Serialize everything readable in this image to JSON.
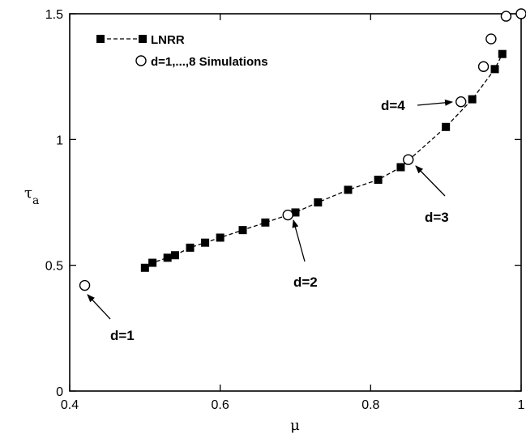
{
  "chart_data": {
    "type": "scatter",
    "xlabel": "μ",
    "ylabel": "τ",
    "ylabel_sub": "a",
    "xlim": [
      0.4,
      1.0
    ],
    "ylim": [
      0,
      1.5
    ],
    "x_ticks": [
      0.4,
      0.6,
      0.8,
      1.0
    ],
    "x_tick_labels": [
      "0.4",
      "0.6",
      "0.8",
      "1"
    ],
    "y_ticks": [
      0,
      0.5,
      1.0,
      1.5
    ],
    "y_tick_labels": [
      "0",
      "0.5",
      "1",
      "1.5"
    ],
    "grid": false,
    "legend_position": "top-left",
    "series": [
      {
        "name": "LNRR",
        "marker": "filled-square",
        "line": "dashed",
        "x": [
          0.5,
          0.51,
          0.53,
          0.54,
          0.56,
          0.58,
          0.6,
          0.63,
          0.66,
          0.7,
          0.73,
          0.77,
          0.81,
          0.84,
          0.9,
          0.935,
          0.965,
          0.975
        ],
        "y": [
          0.49,
          0.51,
          0.53,
          0.54,
          0.57,
          0.59,
          0.61,
          0.64,
          0.67,
          0.71,
          0.75,
          0.8,
          0.84,
          0.89,
          1.05,
          1.16,
          1.28,
          1.34
        ]
      },
      {
        "name": "d=1,...,8 Simulations",
        "marker": "open-circle",
        "line": "none",
        "x": [
          0.42,
          0.69,
          0.85,
          0.92,
          0.95,
          0.96,
          0.98,
          1.0
        ],
        "y": [
          0.42,
          0.7,
          0.92,
          1.15,
          1.29,
          1.4,
          1.49,
          1.5
        ]
      }
    ],
    "annotations": [
      {
        "text": "d=1",
        "target": [
          0.42,
          0.42
        ]
      },
      {
        "text": "d=2",
        "target": [
          0.69,
          0.7
        ]
      },
      {
        "text": "d=3",
        "target": [
          0.85,
          0.92
        ]
      },
      {
        "text": "d=4",
        "target": [
          0.92,
          1.15
        ]
      }
    ]
  }
}
